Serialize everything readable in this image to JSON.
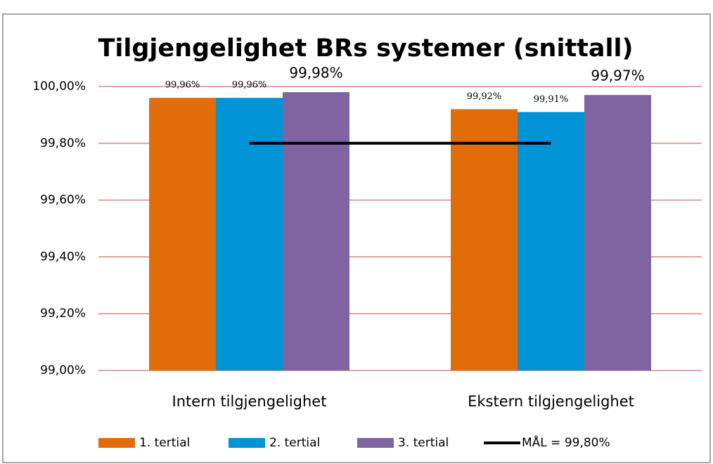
{
  "chart_data": {
    "type": "bar",
    "title": "Tilgjengelighet BRs systemer (snittall)",
    "categories": [
      "Intern tilgjengelighet",
      "Ekstern tilgjengelighet"
    ],
    "series": [
      {
        "name": "1. tertial",
        "color": "#e36c0a",
        "values": [
          99.96,
          99.92
        ],
        "value_labels": [
          "99,96%",
          "99,92%"
        ]
      },
      {
        "name": "2. tertial",
        "color": "#0094d6",
        "values": [
          99.96,
          99.91
        ],
        "value_labels": [
          "99,96%",
          "99,91%"
        ]
      },
      {
        "name": "3. tertial",
        "color": "#8064a2",
        "values": [
          99.98,
          99.97
        ],
        "value_labels": [
          "99,98%",
          "99,97%"
        ]
      },
      {
        "name": "MÅL = 99,80%",
        "color": "#000000",
        "type": "line",
        "values": [
          99.8,
          99.8
        ]
      }
    ],
    "ylim": [
      99,
      100
    ],
    "yticks": [
      {
        "value": 99,
        "label": "99,00%"
      },
      {
        "value": 99.2,
        "label": "99,20%"
      },
      {
        "value": 99.4,
        "label": "99,40%"
      },
      {
        "value": 99.6,
        "label": "99,60%"
      },
      {
        "value": 99.8,
        "label": "99,80%"
      },
      {
        "value": 100,
        "label": "100,00%"
      }
    ],
    "grid": true,
    "grid_color": "#c0504d",
    "legend": "bottom"
  }
}
